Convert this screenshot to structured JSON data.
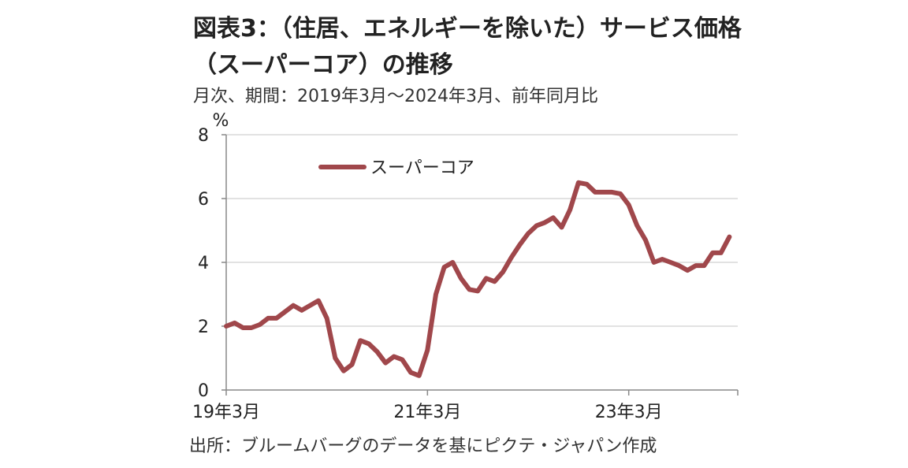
{
  "header": {
    "title": "図表3：（住居、エネルギーを除いた）サービス価格（スーパーコア）の推移",
    "subtitle": "月次、期間：2019年3月～2024年3月、前年同月比"
  },
  "footer": {
    "source": "出所：ブルームバーグのデータを基にピクテ・ジャパン作成"
  },
  "chart_data": {
    "type": "line",
    "title": "（住居、エネルギーを除いた）サービス価格（スーパーコア）の推移",
    "ylabel": "%",
    "ylim": [
      0,
      8
    ],
    "yticks": [
      0,
      2,
      4,
      6,
      8
    ],
    "xtick_labels": [
      "19年3月",
      "21年3月",
      "23年3月"
    ],
    "xtick_indices": [
      0,
      24,
      48
    ],
    "x_range": [
      0,
      61
    ],
    "grid": true,
    "legend_position": "top-left",
    "series": [
      {
        "name": "スーパーコア",
        "color": "#A0474B",
        "values": [
          2.0,
          2.1,
          1.95,
          1.95,
          2.05,
          2.25,
          2.25,
          2.45,
          2.65,
          2.5,
          2.65,
          2.8,
          2.25,
          1.0,
          0.6,
          0.8,
          1.55,
          1.45,
          1.2,
          0.85,
          1.05,
          0.95,
          0.55,
          0.45,
          1.25,
          3.0,
          3.85,
          4.0,
          3.5,
          3.15,
          3.1,
          3.5,
          3.4,
          3.7,
          4.15,
          4.55,
          4.9,
          5.15,
          5.25,
          5.4,
          5.1,
          5.65,
          6.5,
          6.45,
          6.2,
          6.2,
          6.2,
          6.15,
          5.8,
          5.15,
          4.7,
          4.0,
          4.1,
          4.0,
          3.9,
          3.75,
          3.9,
          3.9,
          4.3,
          4.3,
          4.8
        ]
      }
    ]
  }
}
